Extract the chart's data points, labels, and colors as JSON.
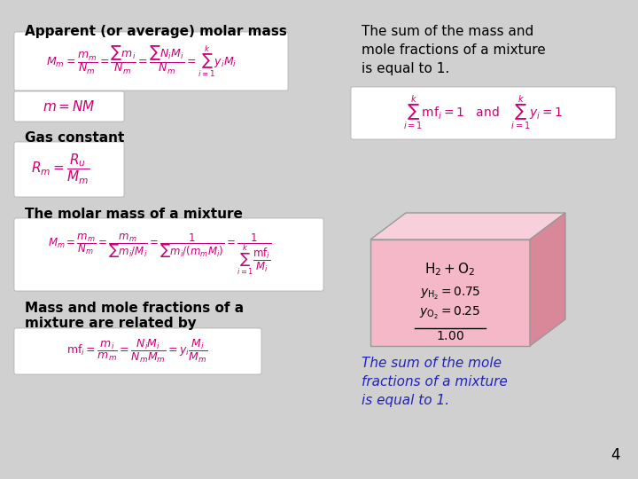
{
  "bg_color": "#d0d0d0",
  "title1": "Apparent (or average) molar mass",
  "title2": "Gas constant",
  "title3": "The molar mass of a mixture",
  "title4": "Mass and mole fractions of a\nmixture are related by",
  "text_right1": "The sum of the mass and\nmole fractions of a mixture\nis equal to 1.",
  "text_right2": "The sum of the mole\nfractions of a mixture\nis equal to 1.",
  "page_num": "4",
  "formula_box_color": "#ffffff",
  "title_color": "#000000",
  "formula_color": "#cc0077",
  "black_formula_color": "#000000",
  "blue_text_color": "#2222bb",
  "box_border_color": "#bbbbbb"
}
